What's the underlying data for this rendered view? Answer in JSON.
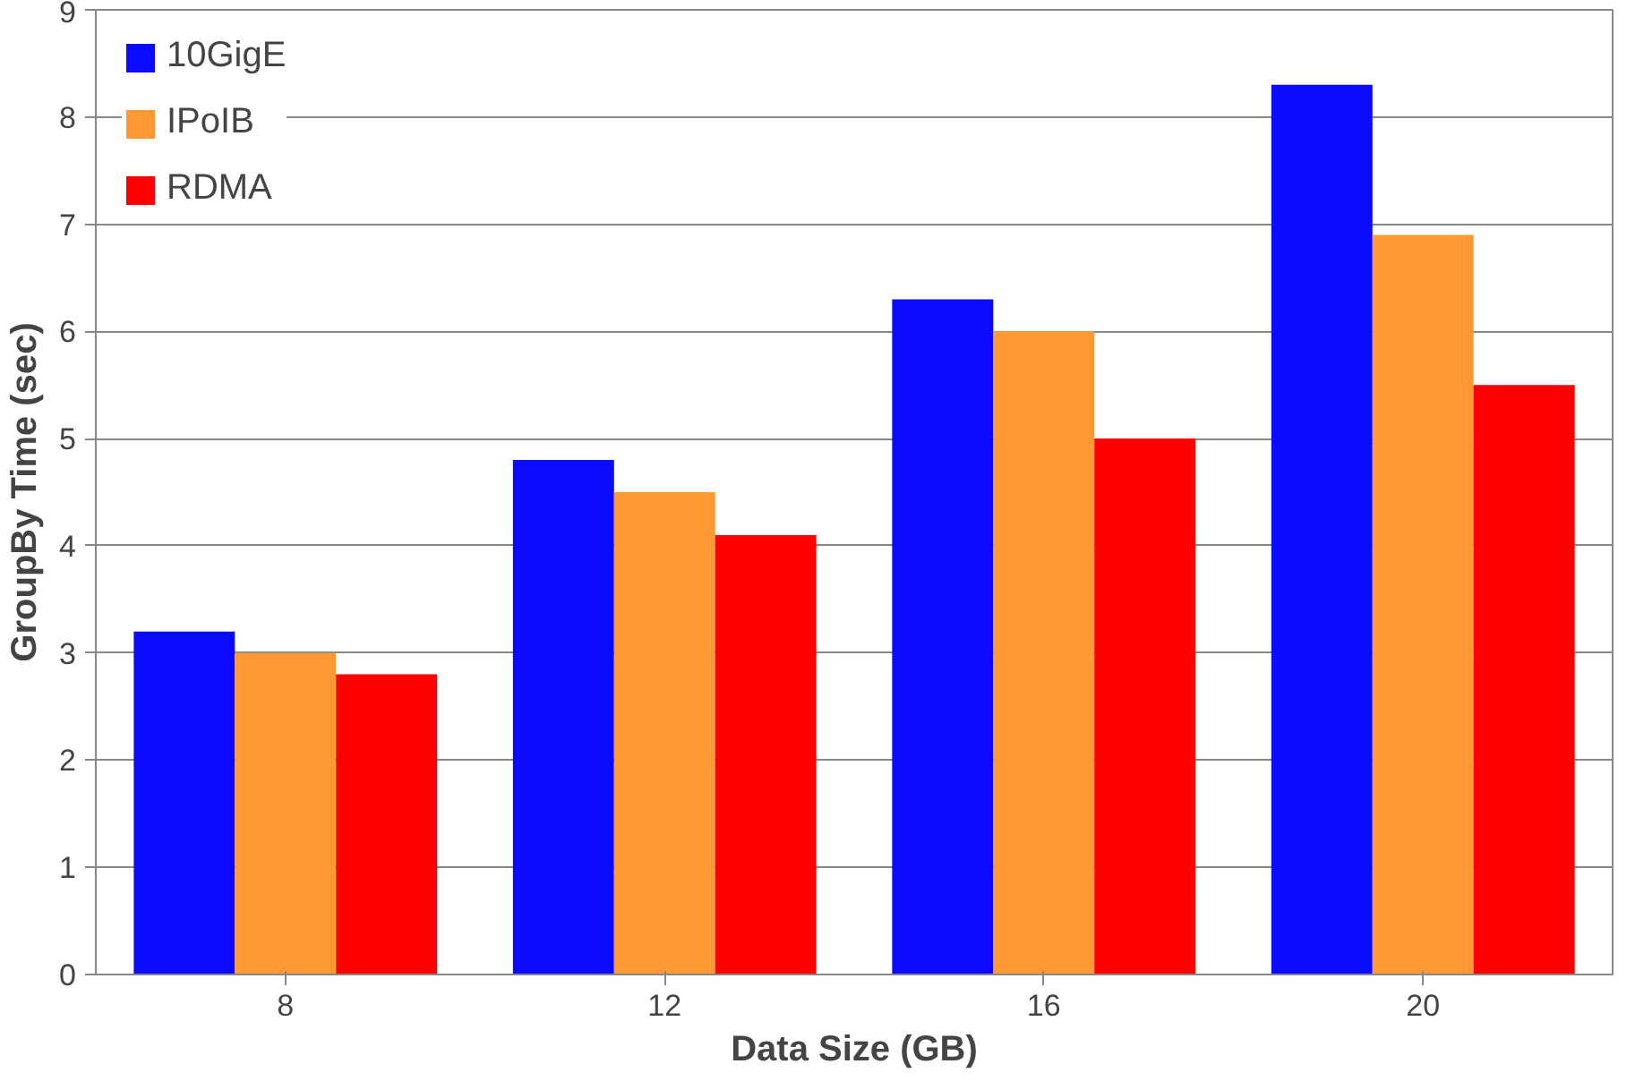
{
  "chart_data": {
    "type": "bar",
    "xlabel": "Data Size (GB)",
    "ylabel": "GroupBy Time (sec)",
    "categories": [
      "8",
      "12",
      "16",
      "20"
    ],
    "series": [
      {
        "name": "10GigE",
        "color": "#0a0aff",
        "values": [
          3.2,
          4.8,
          6.3,
          8.3
        ]
      },
      {
        "name": "IPoIB",
        "color": "#ff9933",
        "values": [
          3.0,
          4.5,
          6.0,
          6.9
        ]
      },
      {
        "name": "RDMA",
        "color": "#ff0000",
        "values": [
          2.8,
          4.1,
          5.0,
          5.5
        ]
      }
    ],
    "ylim": [
      0,
      9
    ],
    "yticks": [
      0,
      1,
      2,
      3,
      4,
      5,
      6,
      7,
      8,
      9
    ],
    "grid": "y",
    "legend": "top left"
  }
}
